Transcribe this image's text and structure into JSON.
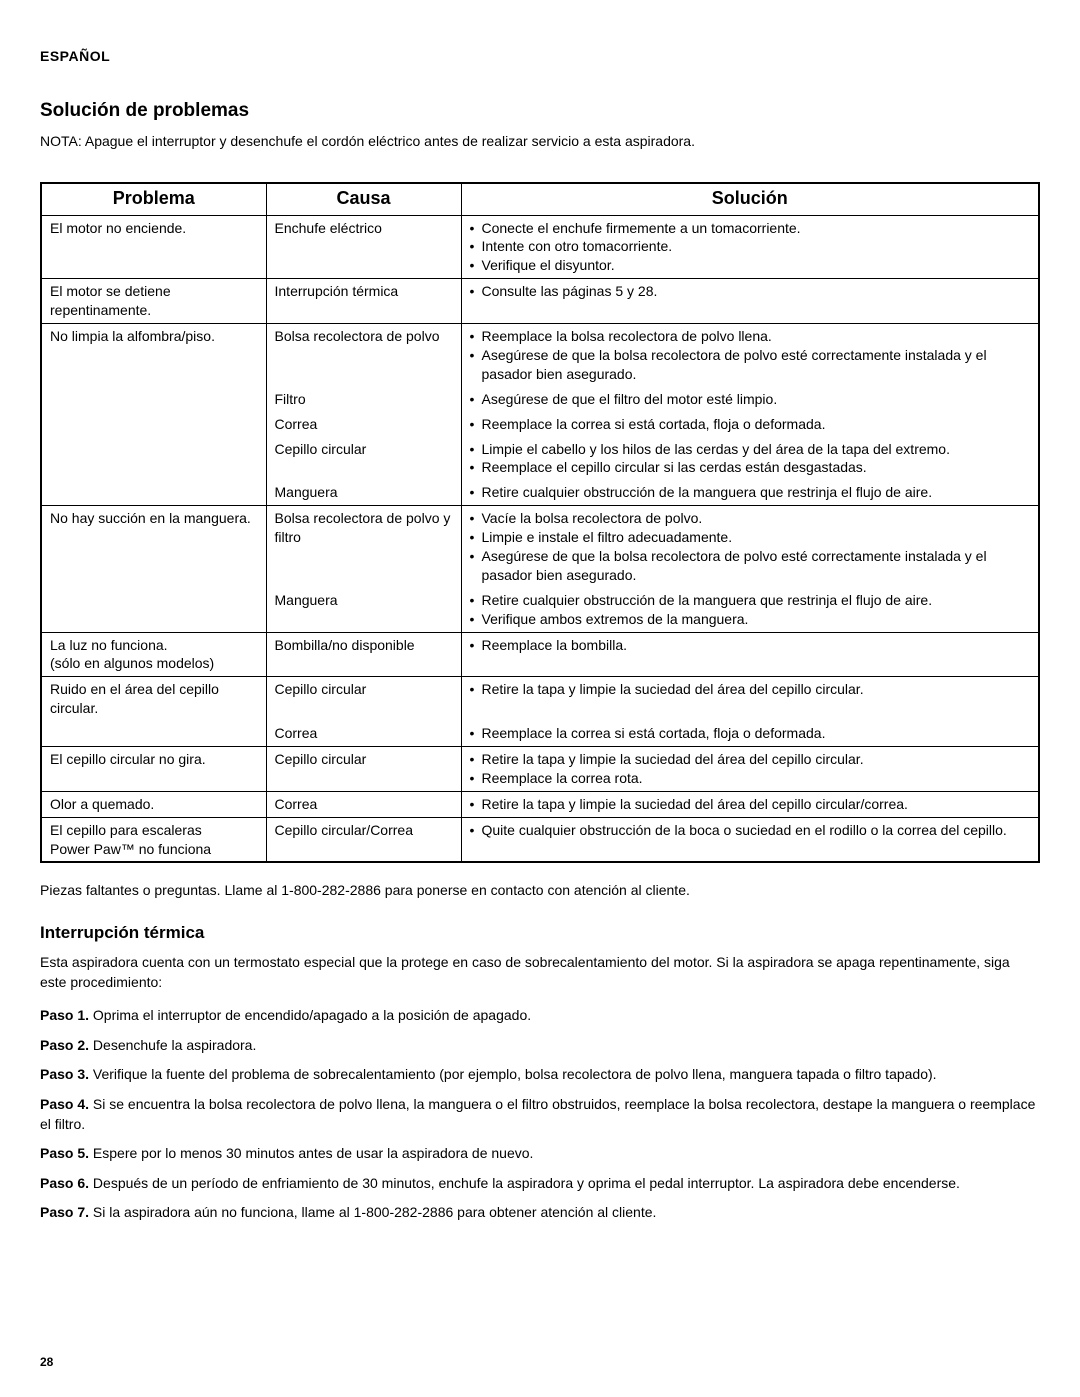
{
  "lang_header": "ESPAÑOL",
  "section_title": "Solución de problemas",
  "note": "NOTA: Apague el interruptor y desenchufe el cordón eléctrico antes de realizar servicio a esta aspiradora.",
  "table": {
    "headers": {
      "problem": "Problema",
      "cause": "Causa",
      "solution": "Solución"
    },
    "groups": [
      {
        "problem": "El motor no enciende.",
        "rows": [
          {
            "cause": "Enchufe eléctrico",
            "solutions": [
              "Conecte el enchufe firmemente a un tomacorriente.",
              "Intente con otro tomacorriente.",
              "Verifique el disyuntor."
            ]
          }
        ]
      },
      {
        "problem": "El motor se detiene repentinamente.",
        "rows": [
          {
            "cause": "Interrupción térmica",
            "solutions": [
              "Consulte las páginas 5 y 28."
            ]
          }
        ]
      },
      {
        "problem": "No limpia la alfombra/piso.",
        "rows": [
          {
            "cause": "Bolsa recolectora de polvo",
            "solutions": [
              "Reemplace la bolsa recolectora de polvo llena.",
              "Asegúrese de que la bolsa recolectora de polvo esté correctamente instalada y el pasador bien asegurado."
            ]
          },
          {
            "cause": "Filtro",
            "solutions": [
              "Asegúrese de que el filtro del motor esté limpio."
            ]
          },
          {
            "cause": "Correa",
            "solutions": [
              "Reemplace la correa si está cortada, floja o deformada."
            ]
          },
          {
            "cause": "Cepillo circular",
            "solutions": [
              "Limpie el cabello y los hilos de las cerdas y del área de la tapa del extremo.",
              "Reemplace el cepillo circular si las cerdas están desgastadas."
            ]
          },
          {
            "cause": "Manguera",
            "solutions": [
              "Retire cualquier obstrucción de la manguera que restrinja el flujo de aire."
            ]
          }
        ]
      },
      {
        "problem": "No hay succión en la manguera.",
        "rows": [
          {
            "cause": "Bolsa recolectora de polvo y filtro",
            "solutions": [
              "Vacíe la bolsa recolectora de polvo.",
              "Limpie e instale el filtro adecuadamente.",
              "Asegúrese de que la bolsa recolectora de polvo esté correctamente instalada y el pasador bien asegurado."
            ]
          },
          {
            "cause": "Manguera",
            "solutions": [
              "Retire cualquier obstrucción de la manguera que restrinja el flujo de aire.",
              "Verifique ambos extremos de la manguera."
            ]
          }
        ]
      },
      {
        "problem": "La luz no funciona.\n(sólo en algunos modelos)",
        "rows": [
          {
            "cause": "Bombilla/no disponible",
            "solutions": [
              "Reemplace la bombilla."
            ]
          }
        ]
      },
      {
        "problem": "Ruido en el área del cepillo circular.",
        "rows": [
          {
            "cause": "Cepillo circular",
            "solutions": [
              "Retire la tapa y limpie la suciedad del área del cepillo circular."
            ]
          },
          {
            "cause": "Correa",
            "solutions": [
              "Reemplace la correa si está cortada, floja o deformada."
            ]
          }
        ]
      },
      {
        "problem": "El cepillo circular no gira.",
        "rows": [
          {
            "cause": "Cepillo circular",
            "solutions": [
              "Retire la tapa y limpie la suciedad del área del cepillo circular.",
              "Reemplace la correa rota."
            ]
          }
        ]
      },
      {
        "problem": "Olor a quemado.",
        "rows": [
          {
            "cause": "Correa",
            "solutions": [
              "Retire la tapa y limpie la suciedad del área del cepillo circular/correa."
            ]
          }
        ]
      },
      {
        "problem": "El cepillo para escaleras\nPower Paw™ no funciona",
        "rows": [
          {
            "cause": "Cepillo circular/Correa",
            "solutions": [
              "Quite cualquier obstrucción de la boca o suciedad en el rodillo o la correa del cepillo."
            ]
          }
        ]
      }
    ]
  },
  "after_table": "Piezas faltantes o preguntas. Llame al 1-800-282-2886 para ponerse en contacto con atención al cliente.",
  "subsection_title": "Interrupción térmica",
  "intro": "Esta aspiradora cuenta con un termostato especial que la protege en caso de sobrecalentamiento del motor. Si la aspiradora se apaga repentinamente, siga este procedimiento:",
  "steps": [
    {
      "label": "Paso 1.",
      "text": "Oprima el interruptor de encendido/apagado a la posición de apagado."
    },
    {
      "label": "Paso 2.",
      "text": "Desenchufe la aspiradora."
    },
    {
      "label": "Paso 3.",
      "text": "Verifique la fuente del problema de sobrecalentamiento (por ejemplo, bolsa recolectora de polvo llena, manguera tapada o filtro tapado)."
    },
    {
      "label": "Paso 4.",
      "text": "Si se encuentra la bolsa recolectora de polvo llena, la manguera o el filtro obstruidos,  reemplace la bolsa recolectora, destape la manguera o reemplace el filtro."
    },
    {
      "label": "Paso 5.",
      "text": "Espere por lo menos 30 minutos antes de usar la aspiradora de nuevo."
    },
    {
      "label": "Paso 6.",
      "text": "Después de un período de enfriamiento de 30 minutos, enchufe la aspiradora y oprima el pedal interruptor. La aspiradora debe encenderse."
    },
    {
      "label": "Paso 7.",
      "text": "Si la aspiradora aún no funciona, llame al 1-800-282-2886 para obtener atención al cliente."
    }
  ],
  "page_number": "28"
}
